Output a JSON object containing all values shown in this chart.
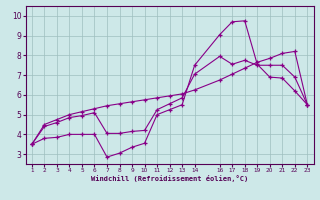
{
  "xlabel": "Windchill (Refroidissement éolien,°C)",
  "background_color": "#cde8e8",
  "grid_color": "#9fbfbf",
  "line_color": "#880088",
  "border_color": "#550055",
  "x_ticks": [
    1,
    2,
    3,
    4,
    5,
    6,
    7,
    8,
    9,
    10,
    11,
    12,
    13,
    14,
    16,
    17,
    18,
    19,
    20,
    21,
    22,
    23
  ],
  "ylim": [
    2.5,
    10.5
  ],
  "xlim": [
    0.5,
    23.5
  ],
  "yticks": [
    3,
    4,
    5,
    6,
    7,
    8,
    9,
    10
  ],
  "line1_x": [
    1,
    2,
    3,
    4,
    5,
    6,
    7,
    8,
    9,
    10,
    11,
    12,
    13,
    14,
    16,
    17,
    18,
    19,
    20,
    21,
    22,
    23
  ],
  "line1_y": [
    3.5,
    3.8,
    3.85,
    4.0,
    4.0,
    4.0,
    2.85,
    3.05,
    3.35,
    3.55,
    5.0,
    5.25,
    5.5,
    7.5,
    9.05,
    9.7,
    9.75,
    7.55,
    6.9,
    6.85,
    6.2,
    5.5
  ],
  "line2_x": [
    1,
    2,
    3,
    4,
    5,
    6,
    7,
    8,
    9,
    10,
    11,
    12,
    13,
    14,
    16,
    17,
    18,
    19,
    20,
    21,
    22,
    23
  ],
  "line2_y": [
    3.5,
    4.4,
    4.6,
    4.85,
    4.95,
    5.1,
    4.05,
    4.05,
    4.15,
    4.2,
    5.25,
    5.55,
    5.85,
    7.05,
    7.95,
    7.55,
    7.75,
    7.5,
    7.5,
    7.5,
    6.9,
    5.5
  ],
  "line3_x": [
    1,
    2,
    3,
    4,
    5,
    6,
    7,
    8,
    9,
    10,
    11,
    12,
    13,
    14,
    16,
    17,
    18,
    19,
    20,
    21,
    22,
    23
  ],
  "line3_y": [
    3.5,
    4.5,
    4.75,
    5.0,
    5.15,
    5.3,
    5.45,
    5.55,
    5.65,
    5.75,
    5.85,
    5.95,
    6.05,
    6.25,
    6.75,
    7.05,
    7.35,
    7.65,
    7.85,
    8.1,
    8.2,
    5.5
  ]
}
